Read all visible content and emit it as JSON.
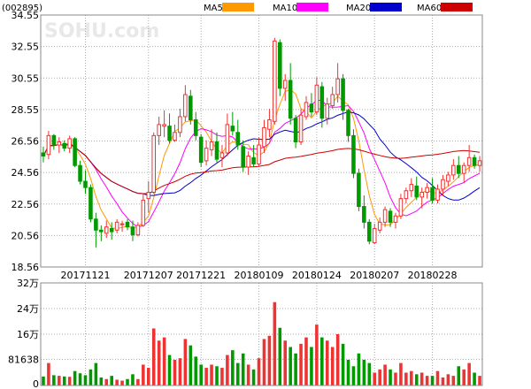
{
  "chart_data": {
    "type": "candlestick",
    "code": "(002895)",
    "watermark": "SOHU.com",
    "legend": [
      {
        "name": "MA5",
        "color": "#ff9900"
      },
      {
        "name": "MA10",
        "color": "#ff00ff"
      },
      {
        "name": "MA20",
        "color": "#0000cc"
      },
      {
        "name": "MA60",
        "color": "#cc0000"
      }
    ],
    "price_axis": {
      "min": 18.56,
      "max": 34.55,
      "ticks": [
        "34.55",
        "32.55",
        "30.55",
        "28.55",
        "26.56",
        "24.56",
        "22.56",
        "20.56",
        "18.56"
      ]
    },
    "volume_axis": {
      "max": 320000,
      "ticks": [
        {
          "label": "32万",
          "value": 320000
        },
        {
          "label": "24万",
          "value": 240000
        },
        {
          "label": "16万",
          "value": 160000
        },
        {
          "label": "81638",
          "value": 81638
        },
        {
          "label": "0",
          "value": 0
        }
      ]
    },
    "x_labels": [
      {
        "label": "20171121",
        "index": 8
      },
      {
        "label": "20171207",
        "index": 20
      },
      {
        "label": "20171221",
        "index": 30
      },
      {
        "label": "20180109",
        "index": 41
      },
      {
        "label": "20180124",
        "index": 52
      },
      {
        "label": "20180207",
        "index": 63
      },
      {
        "label": "20180228",
        "index": 74
      }
    ],
    "colors": {
      "up": "#ee3333",
      "down": "#009900",
      "grid": "#aaaaaa"
    },
    "candles": [
      [
        25.8,
        26.2,
        25.2,
        25.6,
        28000
      ],
      [
        25.7,
        27.2,
        25.4,
        26.9,
        70000
      ],
      [
        26.9,
        27.0,
        26.0,
        26.3,
        32000
      ],
      [
        26.3,
        26.8,
        25.8,
        26.5,
        30000
      ],
      [
        26.4,
        26.6,
        25.9,
        26.1,
        28000
      ],
      [
        26.1,
        26.9,
        25.8,
        26.7,
        27000
      ],
      [
        26.7,
        26.8,
        24.9,
        25.0,
        45000
      ],
      [
        25.0,
        25.3,
        23.8,
        24.0,
        38000
      ],
      [
        24.0,
        24.7,
        23.2,
        23.6,
        32000
      ],
      [
        23.6,
        23.8,
        21.4,
        21.6,
        50000
      ],
      [
        21.6,
        22.0,
        19.8,
        20.9,
        70000
      ],
      [
        20.9,
        21.2,
        20.2,
        20.8,
        25000
      ],
      [
        20.7,
        21.5,
        20.4,
        21.1,
        20000
      ],
      [
        21.0,
        21.4,
        20.3,
        20.8,
        30000
      ],
      [
        20.9,
        21.6,
        20.7,
        21.4,
        18000
      ],
      [
        21.3,
        21.5,
        20.8,
        21.3,
        15000
      ],
      [
        21.4,
        21.6,
        20.9,
        21.1,
        20000
      ],
      [
        21.1,
        21.5,
        20.2,
        20.6,
        35000
      ],
      [
        20.6,
        21.4,
        20.5,
        21.2,
        20000
      ],
      [
        21.2,
        23.2,
        21.1,
        22.8,
        65000
      ],
      [
        22.9,
        24.0,
        22.0,
        23.3,
        55000
      ],
      [
        23.3,
        27.1,
        23.2,
        26.9,
        178000
      ],
      [
        26.9,
        28.1,
        26.3,
        27.6,
        140000
      ],
      [
        27.5,
        28.5,
        26.8,
        27.6,
        150000
      ],
      [
        27.5,
        28.3,
        26.4,
        26.6,
        95000
      ],
      [
        26.6,
        27.6,
        26.5,
        27.1,
        80000
      ],
      [
        27.1,
        28.6,
        26.8,
        28.1,
        85000
      ],
      [
        28.1,
        30.1,
        27.8,
        29.5,
        145000
      ],
      [
        29.4,
        29.8,
        27.6,
        27.9,
        125000
      ],
      [
        27.9,
        28.4,
        26.6,
        26.9,
        90000
      ],
      [
        26.8,
        27.0,
        24.9,
        25.2,
        65000
      ],
      [
        25.3,
        26.6,
        25.0,
        26.1,
        55000
      ],
      [
        26.0,
        27.3,
        25.6,
        26.5,
        65000
      ],
      [
        26.5,
        27.1,
        25.2,
        25.4,
        60000
      ],
      [
        25.5,
        26.3,
        24.9,
        25.8,
        55000
      ],
      [
        25.8,
        28.3,
        25.6,
        27.6,
        95000
      ],
      [
        27.5,
        28.4,
        26.9,
        27.2,
        110000
      ],
      [
        27.1,
        27.9,
        26.0,
        26.3,
        70000
      ],
      [
        26.2,
        26.6,
        24.6,
        24.9,
        100000
      ],
      [
        24.9,
        25.9,
        24.4,
        25.6,
        65000
      ],
      [
        25.5,
        26.3,
        24.9,
        25.1,
        50000
      ],
      [
        25.1,
        26.8,
        24.9,
        26.3,
        85000
      ],
      [
        26.2,
        27.9,
        25.8,
        27.4,
        145000
      ],
      [
        27.3,
        28.6,
        26.8,
        27.9,
        155000
      ],
      [
        27.8,
        33.1,
        27.6,
        32.9,
        260000
      ],
      [
        32.8,
        33.0,
        29.4,
        29.9,
        180000
      ],
      [
        29.9,
        30.8,
        29.1,
        30.4,
        140000
      ],
      [
        30.4,
        31.5,
        27.6,
        28.0,
        120000
      ],
      [
        28.0,
        28.2,
        26.1,
        26.5,
        100000
      ],
      [
        26.5,
        28.6,
        26.3,
        28.2,
        130000
      ],
      [
        28.1,
        29.4,
        27.9,
        29.0,
        150000
      ],
      [
        28.9,
        29.6,
        28.1,
        28.4,
        120000
      ],
      [
        28.4,
        30.6,
        28.2,
        30.1,
        190000
      ],
      [
        30.0,
        30.3,
        27.4,
        28.0,
        150000
      ],
      [
        28.0,
        29.3,
        27.6,
        28.9,
        140000
      ],
      [
        28.8,
        30.0,
        28.6,
        29.5,
        120000
      ],
      [
        29.5,
        31.5,
        29.0,
        30.5,
        160000
      ],
      [
        30.5,
        30.8,
        27.9,
        28.5,
        130000
      ],
      [
        28.5,
        28.6,
        26.5,
        26.9,
        80000
      ],
      [
        26.9,
        27.3,
        24.2,
        24.5,
        60000
      ],
      [
        24.5,
        24.8,
        22.1,
        22.4,
        100000
      ],
      [
        22.4,
        23.1,
        21.0,
        21.4,
        80000
      ],
      [
        21.4,
        21.6,
        20.0,
        20.2,
        70000
      ],
      [
        20.1,
        21.3,
        20.0,
        21.0,
        40000
      ],
      [
        20.9,
        21.7,
        20.7,
        21.4,
        50000
      ],
      [
        21.4,
        22.4,
        21.1,
        22.2,
        65000
      ],
      [
        22.1,
        22.3,
        21.1,
        21.4,
        50000
      ],
      [
        21.4,
        22.0,
        21.0,
        21.8,
        40000
      ],
      [
        21.8,
        23.2,
        21.6,
        22.9,
        70000
      ],
      [
        22.9,
        23.6,
        22.6,
        23.4,
        40000
      ],
      [
        23.4,
        24.2,
        23.0,
        23.8,
        45000
      ],
      [
        23.7,
        24.3,
        22.8,
        23.0,
        35000
      ],
      [
        23.0,
        23.6,
        22.3,
        23.3,
        40000
      ],
      [
        23.3,
        23.9,
        22.9,
        23.6,
        30000
      ],
      [
        23.6,
        24.2,
        22.6,
        22.8,
        30000
      ],
      [
        22.8,
        23.8,
        22.6,
        23.5,
        45000
      ],
      [
        23.5,
        24.4,
        23.1,
        24.1,
        25000
      ],
      [
        24.0,
        24.6,
        23.7,
        24.4,
        35000
      ],
      [
        24.4,
        25.4,
        24.1,
        25.0,
        30000
      ],
      [
        25.0,
        25.6,
        24.2,
        24.5,
        60000
      ],
      [
        24.5,
        25.2,
        23.9,
        25.0,
        50000
      ],
      [
        25.0,
        26.3,
        24.6,
        25.5,
        70000
      ],
      [
        25.5,
        25.7,
        24.8,
        25.0,
        40000
      ],
      [
        25.0,
        25.6,
        24.6,
        25.3,
        30000
      ]
    ]
  }
}
